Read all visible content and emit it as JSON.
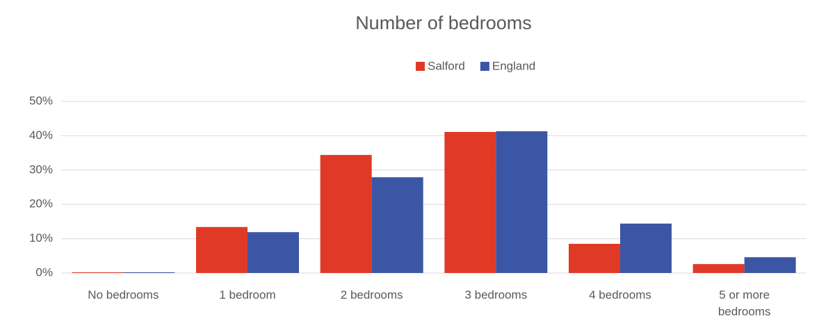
{
  "chart_data": {
    "type": "bar",
    "title": "Number of bedrooms",
    "categories": [
      "No bedrooms",
      "1 bedroom",
      "2 bedrooms",
      "3 bedrooms",
      "4 bedrooms",
      "5 or more bedrooms"
    ],
    "series": [
      {
        "name": "Salford",
        "color": "#e03a27",
        "values": [
          0.2,
          13.4,
          34.4,
          41.1,
          8.5,
          2.6
        ]
      },
      {
        "name": "England",
        "color": "#3c56a6",
        "values": [
          0.2,
          11.9,
          27.9,
          41.3,
          14.4,
          4.6
        ]
      }
    ],
    "ylim": [
      0,
      50
    ],
    "yticks": [
      {
        "value": 0,
        "label": "0%"
      },
      {
        "value": 10,
        "label": "10%"
      },
      {
        "value": 20,
        "label": "20%"
      },
      {
        "value": 30,
        "label": "30%"
      },
      {
        "value": 40,
        "label": "40%"
      },
      {
        "value": 50,
        "label": "50%"
      }
    ],
    "grid": true,
    "legend": "top"
  }
}
